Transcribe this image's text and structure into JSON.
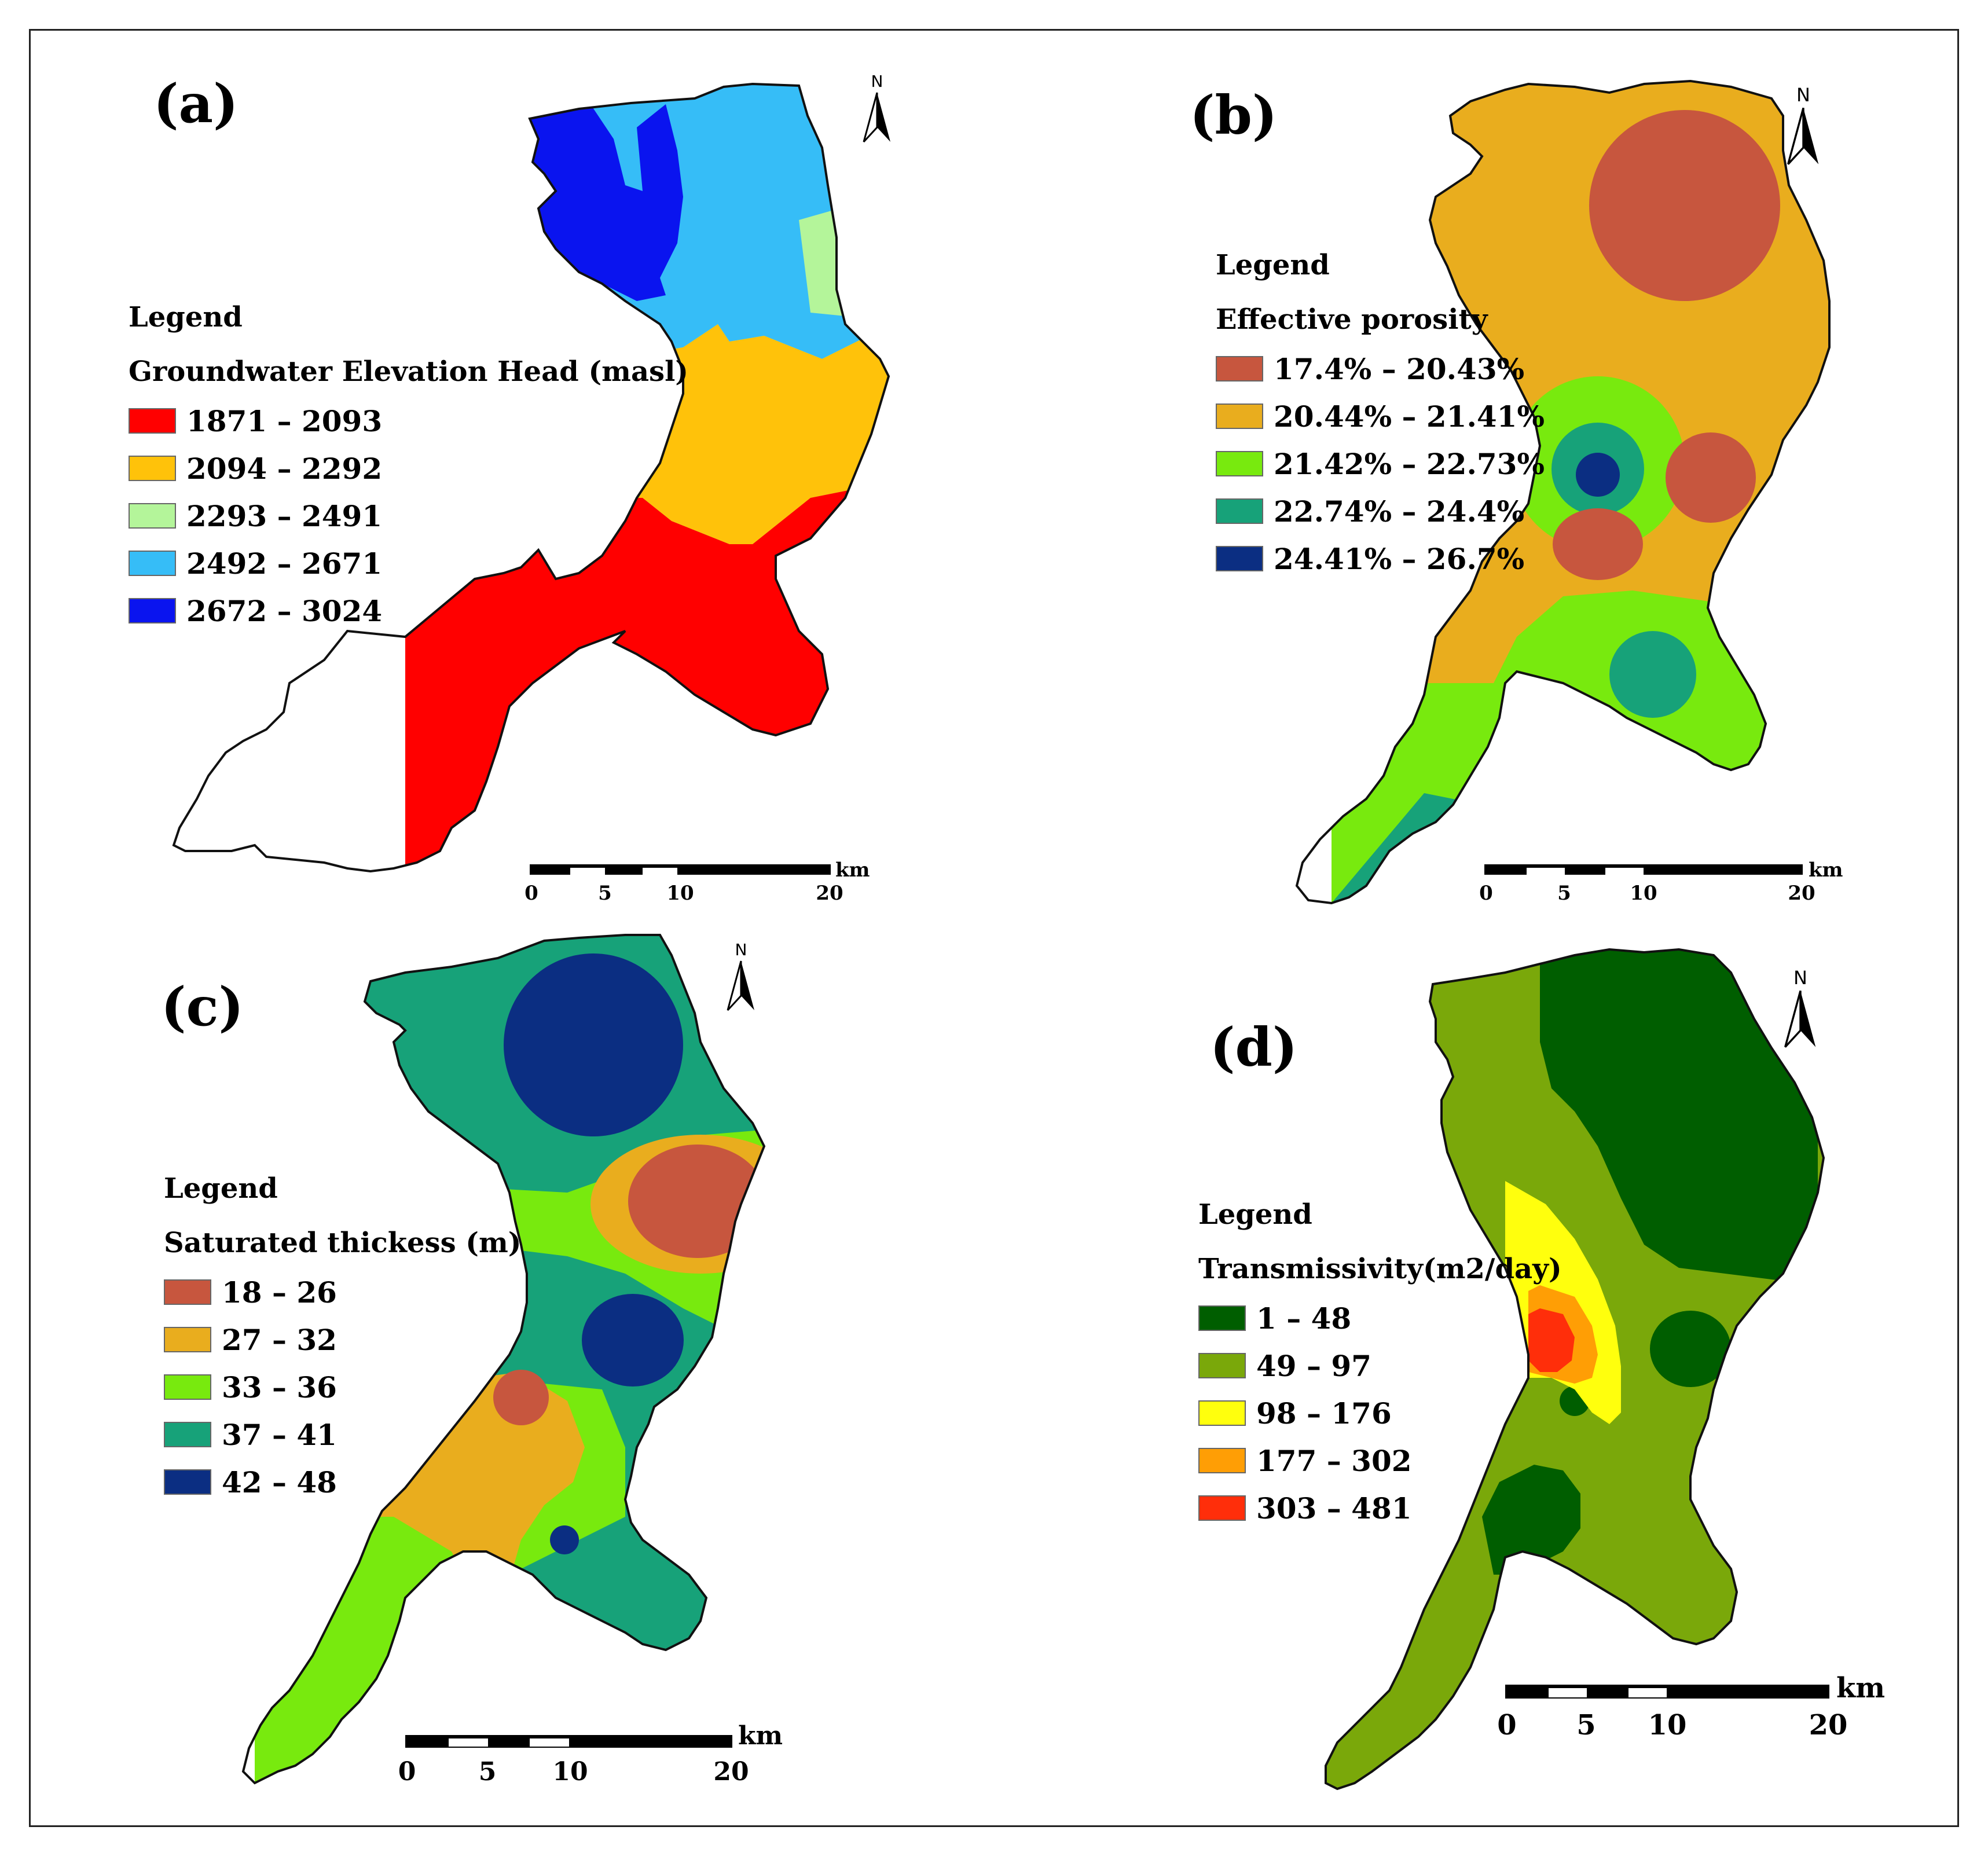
{
  "panels": [
    {
      "label": "(a)",
      "legend_heading": "Legend",
      "legend_title": "Groundwater Elevation Head (masl)",
      "classes": [
        {
          "range": "1871 – 2093",
          "color": "#ff0000"
        },
        {
          "range": "2094 – 2292",
          "color": "#ffc20a"
        },
        {
          "range": "2293 – 2491",
          "color": "#b4f59a"
        },
        {
          "range": "2492 – 2671",
          "color": "#36bdf7"
        },
        {
          "range": "2672 – 3024",
          "color": "#0a14ef"
        }
      ],
      "north": "N",
      "scale": {
        "unit": "km",
        "ticks": [
          "0",
          "5",
          "10",
          "20"
        ]
      }
    },
    {
      "label": "(b)",
      "legend_heading": "Legend",
      "legend_title": "Effective porosity",
      "classes": [
        {
          "range": "17.4% – 20.43%",
          "color": "#c7563e"
        },
        {
          "range": "20.44% – 21.41%",
          "color": "#e9ad1e"
        },
        {
          "range": "21.42% – 22.73%",
          "color": "#78ea0e"
        },
        {
          "range": "22.74% – 24.4%",
          "color": "#17a279"
        },
        {
          "range": "24.41% – 26.7%",
          "color": "#0b2e82"
        }
      ],
      "north": "N",
      "scale": {
        "unit": "km",
        "ticks": [
          "0",
          "5",
          "10",
          "20"
        ]
      }
    },
    {
      "label": "(c)",
      "legend_heading": "Legend",
      "legend_title": "Saturated thickess (m)",
      "classes": [
        {
          "range": "18 – 26",
          "color": "#c7563e"
        },
        {
          "range": "27 – 32",
          "color": "#e9ad1e"
        },
        {
          "range": "33 – 36",
          "color": "#78ea0e"
        },
        {
          "range": "37 – 41",
          "color": "#17a279"
        },
        {
          "range": "42 – 48",
          "color": "#0b2e82"
        }
      ],
      "north": "N",
      "scale": {
        "unit": "km",
        "ticks": [
          "0",
          "5",
          "10",
          "20"
        ]
      }
    },
    {
      "label": "(d)",
      "legend_heading": "Legend",
      "legend_title": "Transmissivity(m2/day)",
      "classes": [
        {
          "range": "1 – 48",
          "color": "#005e00"
        },
        {
          "range": "49 – 97",
          "color": "#7aa80a"
        },
        {
          "range": "98 – 176",
          "color": "#ffff0d"
        },
        {
          "range": "177 – 302",
          "color": "#ff9e05"
        },
        {
          "range": "303 – 481",
          "color": "#ff2e0a"
        }
      ],
      "north": "N",
      "scale": {
        "unit": "km",
        "ticks": [
          "0",
          "5",
          "10",
          "20"
        ]
      }
    }
  ]
}
